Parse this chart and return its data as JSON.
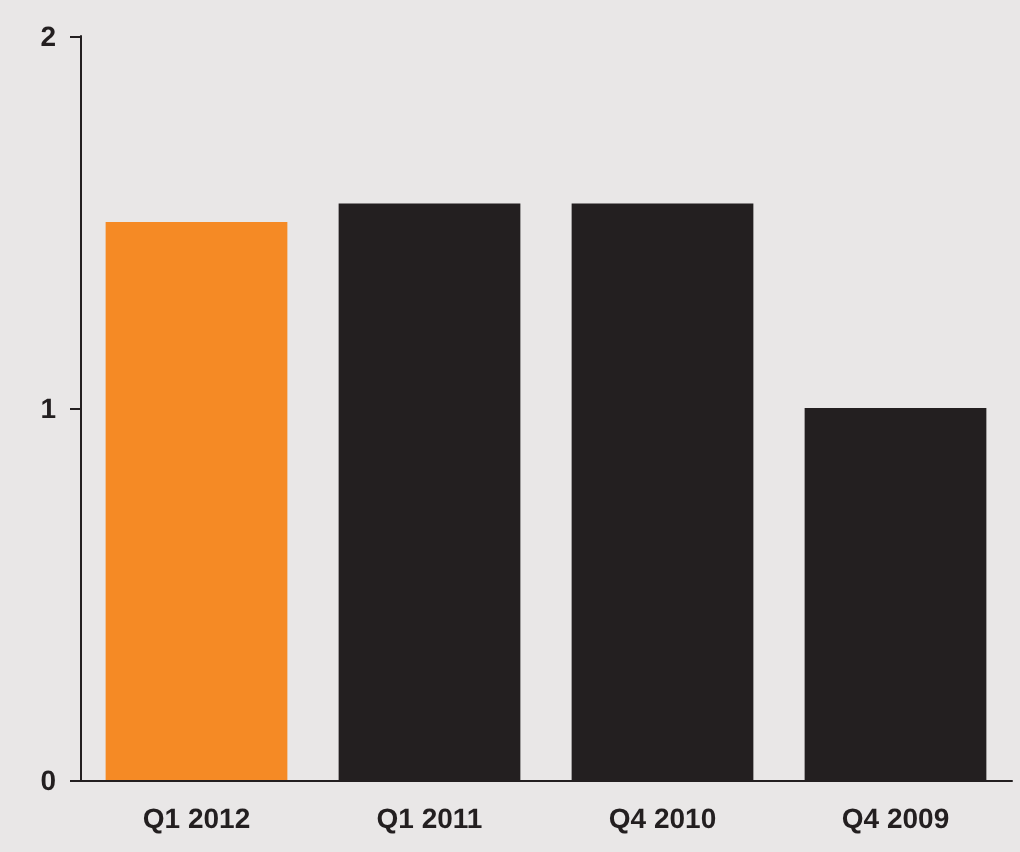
{
  "chart_data": {
    "type": "bar",
    "categories": [
      "Q1 2012",
      "Q1 2011",
      "Q4 2010",
      "Q4 2009"
    ],
    "values": [
      1.5,
      1.55,
      1.55,
      1.0
    ],
    "colors": [
      "#f58a25",
      "#231f20",
      "#231f20",
      "#231f20"
    ],
    "ylim": [
      0,
      2
    ],
    "yticks": [
      0,
      1,
      2
    ],
    "grid": false
  }
}
